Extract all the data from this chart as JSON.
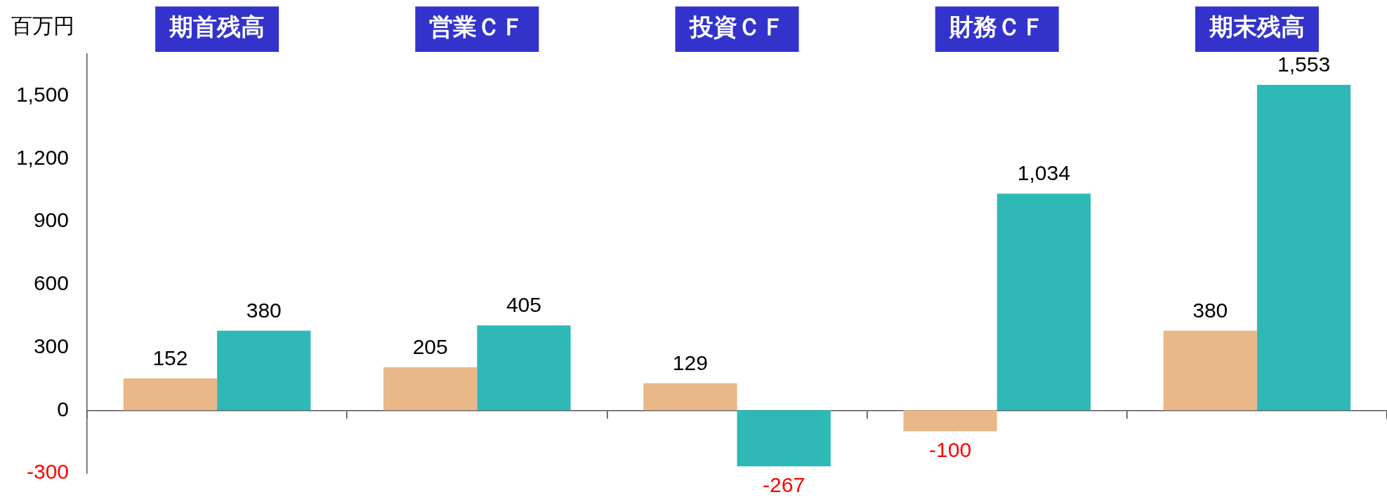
{
  "chart_data": {
    "type": "bar",
    "ylabel": "百万円",
    "categories": [
      "期首残高",
      "営業ＣＦ",
      "投資ＣＦ",
      "財務ＣＦ",
      "期末残高"
    ],
    "series": [
      {
        "color": "#e8b889",
        "values": [
          152,
          205,
          129,
          -100,
          380
        ],
        "value_labels": [
          "152",
          "205",
          "129",
          "-100",
          "380"
        ]
      },
      {
        "color": "#2eb9b7",
        "values": [
          380,
          405,
          -267,
          1034,
          1553
        ],
        "value_labels": [
          "380",
          "405",
          "-267",
          "1,034",
          "1,553"
        ]
      }
    ],
    "ylim": [
      -300,
      1700
    ],
    "yticks": [
      -300,
      0,
      300,
      600,
      900,
      {
        "value": 1200,
        "label": "1,200"
      },
      {
        "value": 1500,
        "label": "1,500"
      }
    ]
  }
}
